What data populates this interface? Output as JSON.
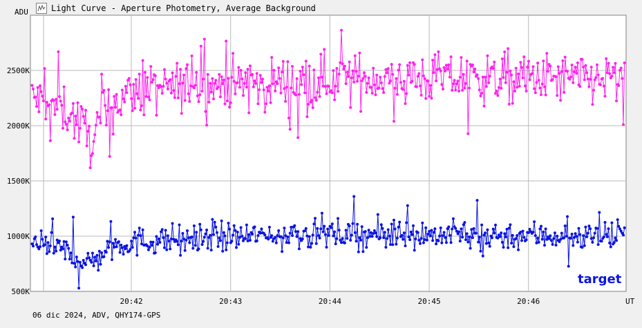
{
  "window": {
    "title": "Light Curve - Aperture Photometry, Average Background",
    "icon": "light-curve-icon"
  },
  "footer": {
    "info": "06 dic 2024, ADV, QHY174-GPS"
  },
  "chart_data": {
    "type": "line",
    "title": "Light Curve - Aperture Photometry, Average Background",
    "ylabel": "ADU",
    "xlabel": "UT",
    "ylim": [
      500000,
      3000000
    ],
    "y_ticks": [
      {
        "value": 500000,
        "label": "500K"
      },
      {
        "value": 1000000,
        "label": "1000K"
      },
      {
        "value": 1500000,
        "label": "1500K"
      },
      {
        "value": 2000000,
        "label": "2000K"
      },
      {
        "value": 2500000,
        "label": "2500K"
      }
    ],
    "x_range_minutes": [
      20.695,
      20.77183
    ],
    "x_ticks": [
      {
        "value": 42,
        "label": "20:42"
      },
      {
        "value": 43,
        "label": "20:43"
      },
      {
        "value": 44,
        "label": "20:44"
      },
      {
        "value": 45,
        "label": "20:45"
      },
      {
        "value": 46,
        "label": "20:46"
      }
    ],
    "x_start": "20:40:59",
    "x_end": "20:46:59",
    "grid": true,
    "series": [
      {
        "name": "",
        "color": "#ff22ee",
        "keypoints": [
          {
            "t": "20:41:00",
            "v": 2250000
          },
          {
            "t": "20:41:20",
            "v": 2150000
          },
          {
            "t": "20:41:30",
            "v": 2000000
          },
          {
            "t": "20:41:36",
            "v": 1850000
          },
          {
            "t": "20:41:45",
            "v": 2150000
          },
          {
            "t": "20:42:00",
            "v": 2300000
          },
          {
            "t": "20:42:30",
            "v": 2350000
          },
          {
            "t": "20:43:30",
            "v": 2400000
          },
          {
            "t": "20:44:30",
            "v": 2430000
          },
          {
            "t": "20:46:59",
            "v": 2420000
          }
        ],
        "scatter": 150000
      },
      {
        "name": "target",
        "color": "#0a14e0",
        "keypoints": [
          {
            "t": "20:41:00",
            "v": 930000
          },
          {
            "t": "20:41:20",
            "v": 860000
          },
          {
            "t": "20:41:36",
            "v": 760000
          },
          {
            "t": "20:41:50",
            "v": 930000
          },
          {
            "t": "20:42:30",
            "v": 980000
          },
          {
            "t": "20:44:00",
            "v": 1020000
          },
          {
            "t": "20:46:59",
            "v": 1000000
          }
        ],
        "scatter": 85000
      }
    ]
  }
}
